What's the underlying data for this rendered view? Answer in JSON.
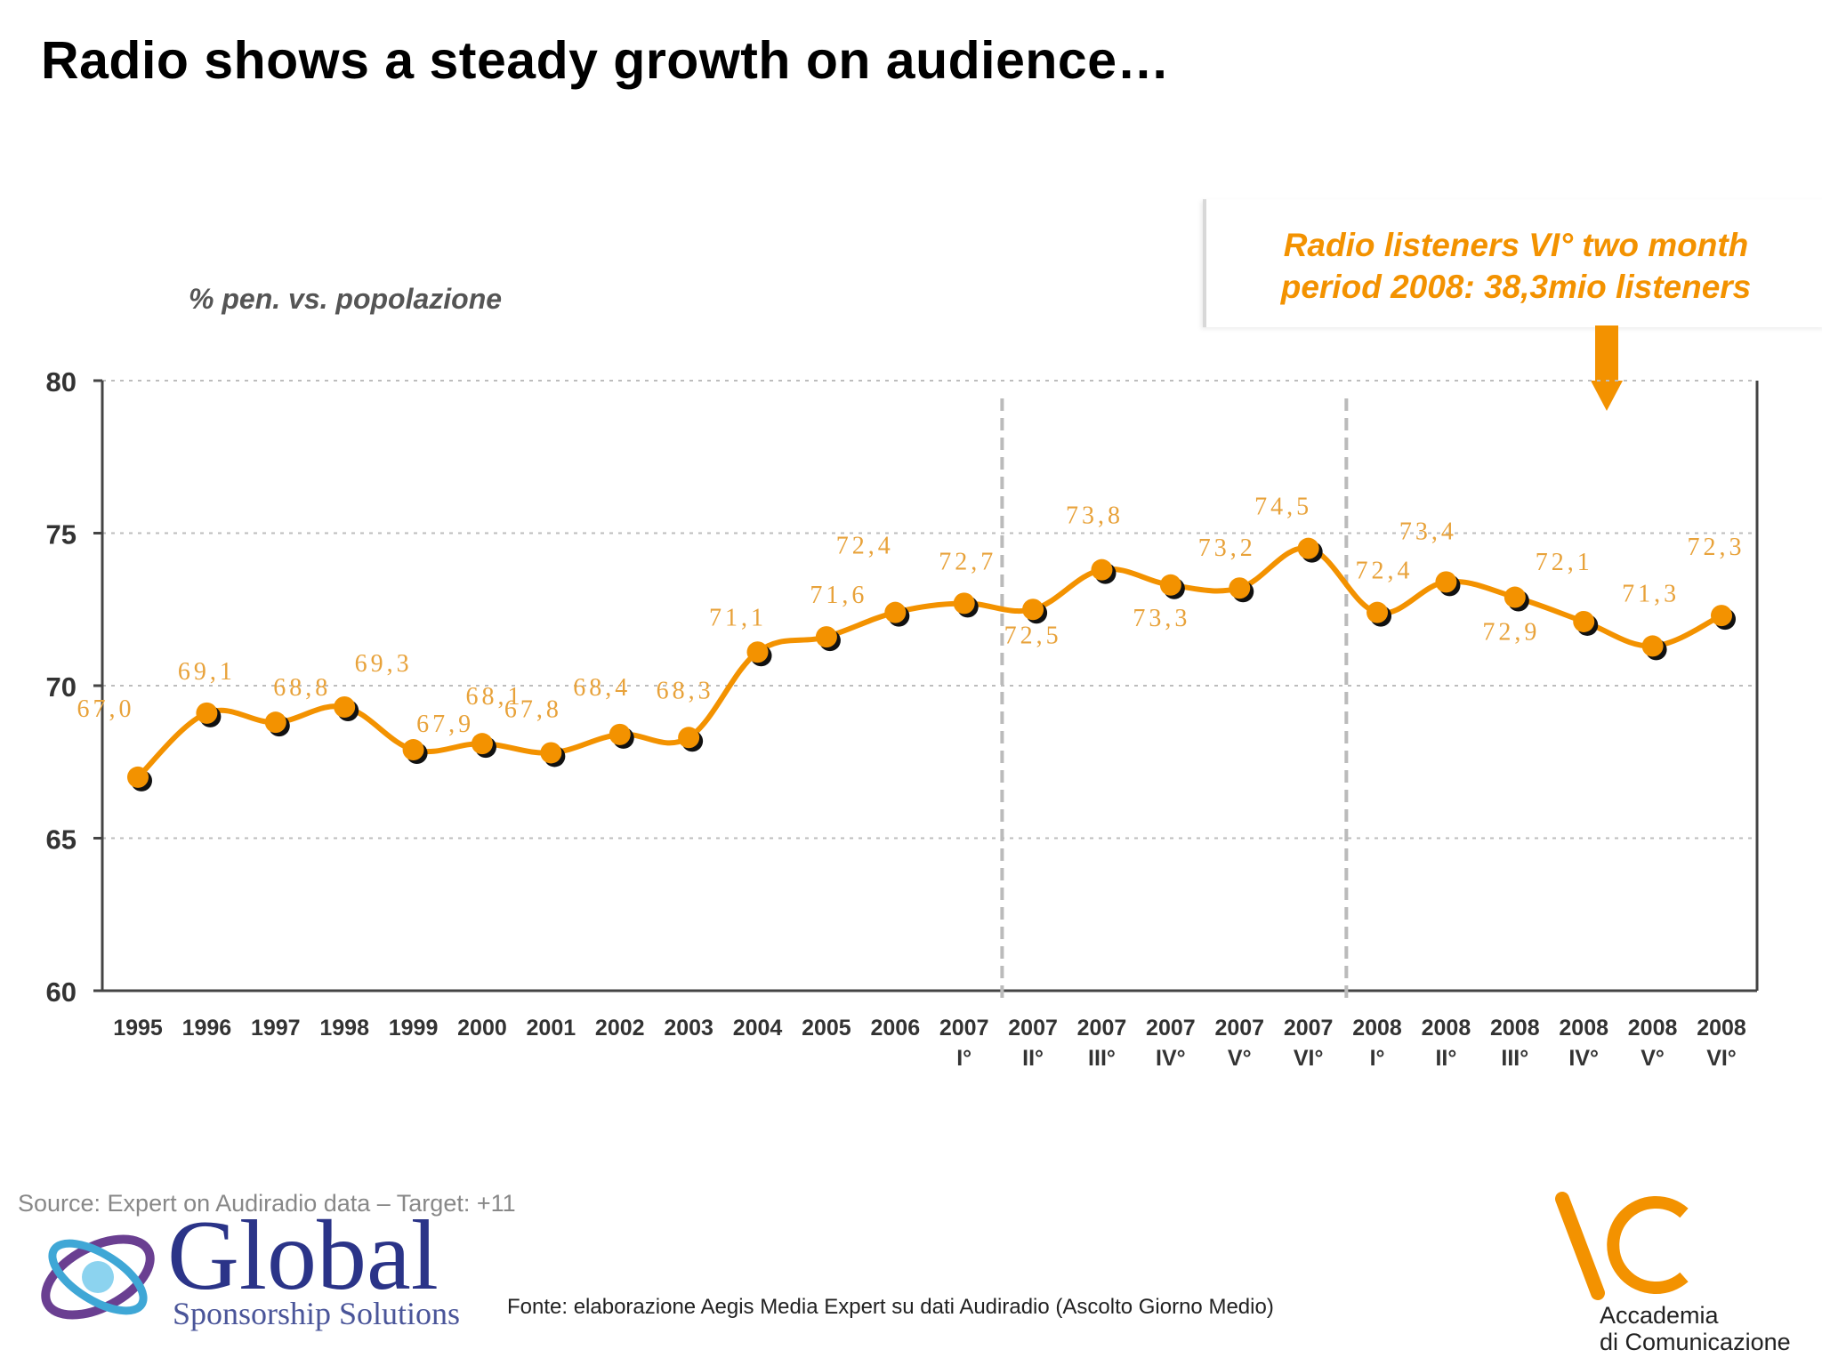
{
  "page": {
    "title": "Radio shows a steady growth on audience…"
  },
  "callout": {
    "text": "Radio listeners VI° two month period 2008: 38,3mio listeners"
  },
  "footer": {
    "source": "Source: Expert on Audiradio data – Target: +11",
    "fonte": "Fonte: elaborazione Aegis Media Expert su dati Audiradio (Ascolto Giorno Medio)",
    "logo_global_word": "Global",
    "logo_global_sub": "Sponsorship Solutions",
    "logo_ac_line1": "Accademia",
    "logo_ac_line2": "di Comunicazione"
  },
  "colors": {
    "line": "#F39200",
    "label": "#E8A23A",
    "grid": "#bdbdbd",
    "period_divider": "#bbbbbb"
  },
  "icons": {
    "callout_pointer": "arrow-down-icon"
  },
  "chart_data": {
    "type": "line",
    "title": "",
    "xlabel": "",
    "ylabel": "% pen. vs. popolazione",
    "ylim": [
      60,
      80
    ],
    "yticks": [
      60,
      65,
      70,
      75,
      80
    ],
    "grid": true,
    "categories": [
      [
        "1995",
        ""
      ],
      [
        "1996",
        ""
      ],
      [
        "1997",
        ""
      ],
      [
        "1998",
        ""
      ],
      [
        "1999",
        ""
      ],
      [
        "2000",
        ""
      ],
      [
        "2001",
        ""
      ],
      [
        "2002",
        ""
      ],
      [
        "2003",
        ""
      ],
      [
        "2004",
        ""
      ],
      [
        "2005",
        ""
      ],
      [
        "2006",
        ""
      ],
      [
        "2007",
        "I°"
      ],
      [
        "2007",
        "II°"
      ],
      [
        "2007",
        "III°"
      ],
      [
        "2007",
        "IV°"
      ],
      [
        "2007",
        "V°"
      ],
      [
        "2007",
        "VI°"
      ],
      [
        "2008",
        "I°"
      ],
      [
        "2008",
        "II°"
      ],
      [
        "2008",
        "III°"
      ],
      [
        "2008",
        "IV°"
      ],
      [
        "2008",
        "V°"
      ],
      [
        "2008",
        "VI°"
      ]
    ],
    "series": [
      {
        "values": [
          67.0,
          69.1,
          68.8,
          69.3,
          67.9,
          68.1,
          67.8,
          68.4,
          68.3,
          71.1,
          71.6,
          72.4,
          72.7,
          72.5,
          73.8,
          73.3,
          73.2,
          74.5,
          72.4,
          73.4,
          72.9,
          72.1,
          71.3,
          72.3
        ],
        "data_labels": [
          "67,0",
          "69,1",
          "68,8",
          "69,3",
          "67,9",
          "68,1",
          "67,8",
          "68,4",
          "68,3",
          "71,1",
          "71,6",
          "72,4",
          "72,7",
          "72,5",
          "73,8",
          "73,3",
          "73,2",
          "74,5",
          "72,4",
          "73,4",
          "72,9",
          "72,1",
          "71,3",
          "72,3"
        ]
      }
    ],
    "period_dividers_between": [
      [
        "2007 I°",
        "2007 II°"
      ],
      [
        "2007 VI°",
        "2008 I°"
      ]
    ]
  }
}
